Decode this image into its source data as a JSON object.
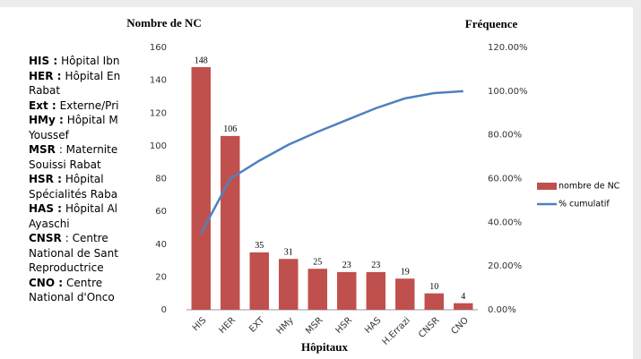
{
  "chart_data": {
    "type": "pareto",
    "y_title": "Nombre de NC",
    "y2_title": "Fréquence",
    "x_title": "Hôpitaux",
    "categories": [
      "HIS",
      "HER",
      "EXT",
      "HMy",
      "MSR",
      "HSR",
      "HAS",
      "H.Errazi",
      "CNSR",
      "CNO"
    ],
    "series": [
      {
        "name": "nombre de NC",
        "color": "#c0504d",
        "type": "bar",
        "values": [
          148,
          106,
          35,
          31,
          25,
          23,
          23,
          19,
          10,
          4
        ]
      },
      {
        "name": "% cumulatif",
        "color": "#4f81bd",
        "type": "line",
        "axis": "y2",
        "values": [
          34.9,
          59.9,
          68.2,
          75.5,
          81.4,
          86.8,
          92.2,
          96.7,
          99.1,
          100
        ]
      }
    ],
    "ylim": [
      0,
      160
    ],
    "yticks": [
      0,
      20,
      40,
      60,
      80,
      100,
      120,
      140,
      160
    ],
    "y2lim": [
      0,
      120
    ],
    "y2ticks": [
      {
        "value": 0,
        "label": "0.00%"
      },
      {
        "value": 20,
        "label": "20.00%"
      },
      {
        "value": 40,
        "label": "40.00%"
      },
      {
        "value": 60,
        "label": "60.00%"
      },
      {
        "value": 80,
        "label": "80.00%"
      },
      {
        "value": 100,
        "label": "100.00%"
      },
      {
        "value": 120,
        "label": "120.00%"
      }
    ],
    "legend": "right"
  },
  "notes": [
    {
      "b": "HIS :",
      "t": "Hôpital Ibn"
    },
    {
      "b": "HER :",
      "t": "Hôpital En"
    },
    {
      "t": "Rabat"
    },
    {
      "b": "Ext :",
      "t": "Externe/Pri"
    },
    {
      "b": "HMy :",
      "t": "Hôpital M"
    },
    {
      "t": "Youssef"
    },
    {
      "b": "MSR",
      "t": ": Maternite"
    },
    {
      "t": "Souissi Rabat"
    },
    {
      "b": "HSR :",
      "t": "Hôpital"
    },
    {
      "t": "Spécialités Raba"
    },
    {
      "b": "HAS :",
      "t": "Hôpital Al"
    },
    {
      "t": "Ayaschi"
    },
    {
      "b": "CNSR",
      "t": ": Centre"
    },
    {
      "t": "National de Sant"
    },
    {
      "t": "Reproductrice"
    },
    {
      "b": "CNO :",
      "t": "Centre"
    },
    {
      "t": "National d'Onco"
    }
  ]
}
